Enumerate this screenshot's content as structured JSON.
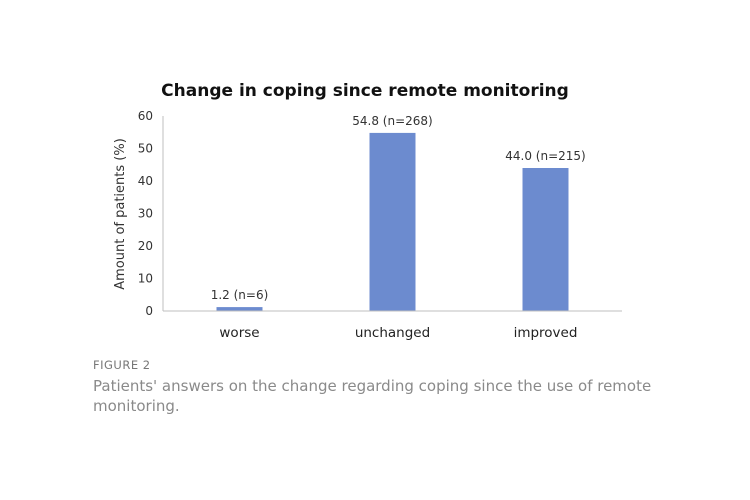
{
  "chart_data": {
    "type": "bar",
    "title": "Change in coping since remote monitoring",
    "ylabel": "Amount of patients (%)",
    "xlabel": "",
    "categories": [
      "worse",
      "unchanged",
      "improved"
    ],
    "values": [
      1.2,
      54.8,
      44.0
    ],
    "data_labels": [
      "1.2 (n=6)",
      "54.8 (n=268)",
      "44.0 (n=215)"
    ],
    "ylim": [
      0,
      60
    ],
    "yticks": [
      0,
      10,
      20,
      30,
      40,
      50,
      60
    ],
    "bar_color": "#6c8bcf",
    "grid": false,
    "legend": "none"
  },
  "caption": {
    "label": "FIGURE 2",
    "text": "Patients' answers on the change regarding coping since the use of remote monitoring."
  }
}
